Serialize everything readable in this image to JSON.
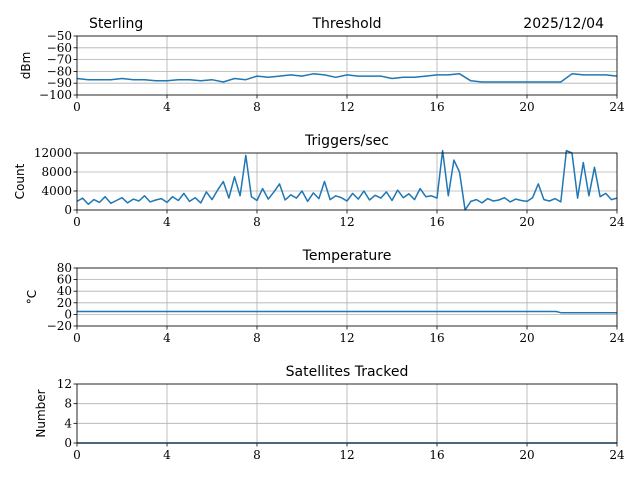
{
  "header": {
    "station": "Sterling",
    "date": "2025/12/04"
  },
  "colors": {
    "line": "#1f77b4",
    "grid": "#b0b0b0"
  },
  "chart_data": [
    {
      "type": "line",
      "title": "Threshold",
      "ylabel": "dBm",
      "xlim": [
        0,
        24
      ],
      "ylim": [
        -100,
        -50
      ],
      "xticks": [
        0,
        4,
        8,
        12,
        16,
        20,
        24
      ],
      "yticks": [
        -100,
        -90,
        -80,
        -70,
        -60,
        -50
      ],
      "x_step": 0.5,
      "values": [
        -86,
        -87,
        -87,
        -87,
        -86,
        -87,
        -87,
        -88,
        -88,
        -87,
        -87,
        -88,
        -87,
        -89,
        -86,
        -87,
        -84,
        -85,
        -84,
        -83,
        -84,
        -82,
        -83,
        -85,
        -83,
        -84,
        -84,
        -84,
        -86,
        -85,
        -85,
        -84,
        -83,
        -83,
        -82,
        -88,
        -89,
        -89,
        -89,
        -89,
        -89,
        -89,
        -89,
        -89,
        -82,
        -83,
        -83,
        -83,
        -84
      ]
    },
    {
      "type": "line",
      "title": "Triggers/sec",
      "ylabel": "Count",
      "xlim": [
        0,
        24
      ],
      "ylim": [
        0,
        12000
      ],
      "xticks": [
        0,
        4,
        8,
        12,
        16,
        20,
        24
      ],
      "yticks": [
        0,
        4000,
        8000,
        12000
      ],
      "x_step": 0.25,
      "values": [
        1800,
        2500,
        1200,
        2200,
        1600,
        2800,
        1400,
        2000,
        2600,
        1500,
        2300,
        1900,
        3000,
        1700,
        2100,
        2400,
        1600,
        2800,
        2000,
        3500,
        1800,
        2600,
        1500,
        3800,
        2200,
        4200,
        6000,
        2500,
        7000,
        3000,
        11500,
        2800,
        2000,
        4500,
        2300,
        3800,
        5500,
        2100,
        3200,
        2500,
        4000,
        1800,
        3600,
        2400,
        6000,
        2200,
        3000,
        2600,
        1900,
        3500,
        2300,
        4000,
        2100,
        3100,
        2500,
        3800,
        2000,
        4200,
        2600,
        3400,
        2200,
        4500,
        2800,
        3000,
        2500,
        12500,
        3000,
        10500,
        8000,
        0,
        1800,
        2200,
        1500,
        2400,
        1900,
        2100,
        2600,
        1700,
        2300,
        2000,
        1800,
        2600,
        5500,
        2200,
        1900,
        2400,
        1700,
        12500,
        12000,
        2500,
        10000,
        3000,
        9000,
        2800,
        3500,
        2200,
        2500
      ]
    },
    {
      "type": "line",
      "title": "Temperature",
      "ylabel": "°C",
      "xlim": [
        0,
        24
      ],
      "ylim": [
        -20,
        80
      ],
      "xticks": [
        0,
        4,
        8,
        12,
        16,
        20,
        24
      ],
      "yticks": [
        -20,
        0,
        20,
        40,
        60,
        80
      ],
      "x": [
        0,
        21.3,
        21.5,
        24
      ],
      "values": [
        5,
        5,
        3,
        3
      ]
    },
    {
      "type": "line",
      "title": "Satellites Tracked",
      "ylabel": "Number",
      "xlim": [
        0,
        24
      ],
      "ylim": [
        0,
        12
      ],
      "xticks": [
        0,
        4,
        8,
        12,
        16,
        20,
        24
      ],
      "yticks": [
        0,
        4,
        8,
        12
      ],
      "x": [
        0,
        24
      ],
      "values": [
        0,
        0
      ]
    }
  ]
}
